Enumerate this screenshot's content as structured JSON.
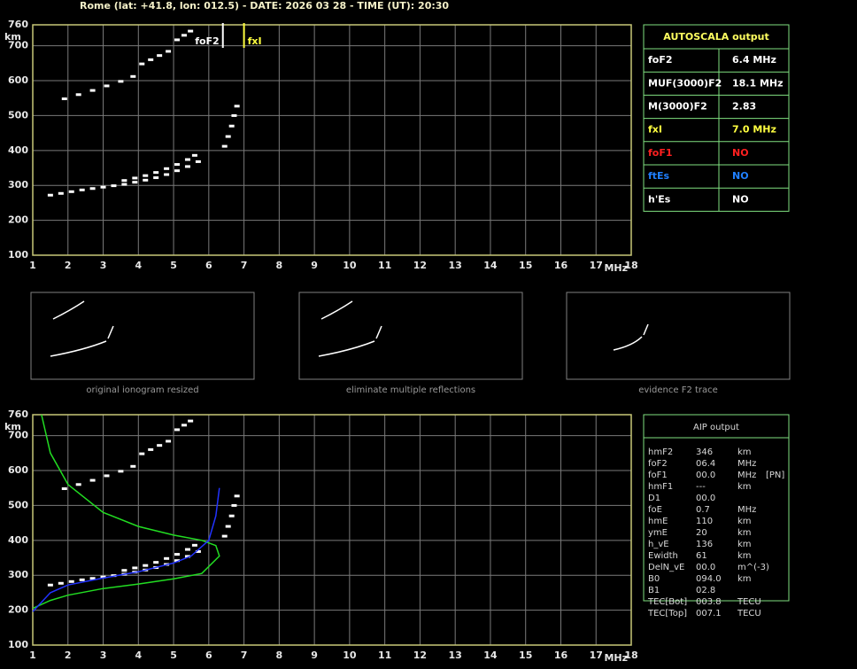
{
  "header": "Rome (lat: +41.8, lon: 012.5) - DATE: 2026 03 28 - TIME (UT): 20:30",
  "chart_data": [
    {
      "type": "scatter",
      "xlim": [
        1,
        18
      ],
      "xticks": [
        1,
        2,
        3,
        4,
        5,
        6,
        7,
        8,
        9,
        10,
        11,
        12,
        13,
        14,
        15,
        16,
        17,
        18
      ],
      "ylim": [
        100,
        760
      ],
      "yticks": [
        100,
        200,
        300,
        400,
        500,
        600,
        700,
        760
      ],
      "xlabel": "MHz",
      "ylabel": "km",
      "grid": true,
      "markers": [
        {
          "label": "foF2",
          "x": 6.4,
          "color": "#ffffff"
        },
        {
          "label": "fxI",
          "x": 7.0,
          "color": "#ffff40"
        }
      ],
      "series": [
        {
          "type": "scatter",
          "color": "#ffffff",
          "x": [
            1.5,
            1.8,
            2.1,
            2.4,
            2.7,
            3.0,
            3.3,
            3.6,
            3.9,
            4.2,
            4.5,
            4.8,
            5.1,
            5.4,
            5.7
          ],
          "values": [
            272,
            277,
            282,
            287,
            291,
            295,
            299,
            303,
            309,
            315,
            322,
            331,
            342,
            354,
            368
          ]
        },
        {
          "type": "scatter",
          "color": "#ffffff",
          "x": [
            3.6,
            3.9,
            4.2,
            4.5,
            4.8,
            5.1,
            5.4,
            5.6
          ],
          "values": [
            314,
            321,
            328,
            337,
            348,
            360,
            374,
            386
          ]
        },
        {
          "type": "scatter",
          "color": "#ffffff",
          "x": [
            6.45,
            6.55,
            6.65,
            6.72,
            6.8
          ],
          "values": [
            412,
            440,
            470,
            500,
            527
          ]
        },
        {
          "type": "scatter",
          "color": "#ffffff",
          "x": [
            1.9,
            2.3,
            2.7,
            3.1,
            3.5,
            3.85
          ],
          "values": [
            548,
            560,
            572,
            585,
            598,
            612
          ]
        },
        {
          "type": "scatter",
          "color": "#ffffff",
          "x": [
            4.1,
            4.35,
            4.6,
            4.85
          ],
          "values": [
            648,
            660,
            672,
            684
          ]
        },
        {
          "type": "scatter",
          "color": "#ffffff",
          "x": [
            5.1,
            5.3,
            5.48
          ],
          "values": [
            717,
            730,
            742
          ]
        }
      ]
    },
    {
      "type": "line",
      "xlim": [
        1,
        18
      ],
      "xticks": [
        1,
        2,
        3,
        4,
        5,
        6,
        7,
        8,
        9,
        10,
        11,
        12,
        13,
        14,
        15,
        16,
        17,
        18
      ],
      "ylim": [
        100,
        760
      ],
      "yticks": [
        100,
        200,
        300,
        400,
        500,
        600,
        700,
        760
      ],
      "xlabel": "MHz",
      "ylabel": "km",
      "grid": true,
      "series": [
        {
          "type": "scatter",
          "color": "#ffffff",
          "x": [
            1.5,
            1.8,
            2.1,
            2.4,
            2.7,
            3.0,
            3.3,
            3.6,
            3.9,
            4.2,
            4.5,
            4.8,
            5.1,
            5.4,
            5.7
          ],
          "values": [
            272,
            277,
            282,
            287,
            291,
            295,
            299,
            303,
            309,
            315,
            322,
            331,
            342,
            354,
            368
          ]
        },
        {
          "type": "scatter",
          "color": "#ffffff",
          "x": [
            3.6,
            3.9,
            4.2,
            4.5,
            4.8,
            5.1,
            5.4,
            5.6
          ],
          "values": [
            314,
            321,
            328,
            337,
            348,
            360,
            374,
            386
          ]
        },
        {
          "type": "scatter",
          "color": "#ffffff",
          "x": [
            6.45,
            6.55,
            6.65,
            6.72,
            6.8
          ],
          "values": [
            412,
            440,
            470,
            500,
            527
          ]
        },
        {
          "type": "scatter",
          "color": "#ffffff",
          "x": [
            1.9,
            2.3,
            2.7,
            3.1,
            3.5,
            3.85
          ],
          "values": [
            548,
            560,
            572,
            585,
            598,
            612
          ]
        },
        {
          "type": "scatter",
          "color": "#ffffff",
          "x": [
            4.1,
            4.35,
            4.6,
            4.85
          ],
          "values": [
            648,
            660,
            672,
            684
          ]
        },
        {
          "type": "scatter",
          "color": "#ffffff",
          "x": [
            5.1,
            5.3,
            5.48
          ],
          "values": [
            717,
            730,
            742
          ]
        },
        {
          "type": "line",
          "color": "#22dd22",
          "x": [
            1,
            1.5,
            2,
            3,
            4,
            5,
            5.8,
            6.3,
            6.2,
            5.8,
            5,
            4,
            3,
            2,
            1.5,
            1.25
          ],
          "values": [
            205,
            228,
            243,
            262,
            275,
            290,
            305,
            355,
            385,
            400,
            415,
            440,
            480,
            560,
            650,
            760
          ]
        },
        {
          "type": "line",
          "color": "#2233ff",
          "x": [
            1,
            1.5,
            2,
            3,
            4,
            5,
            5.5,
            6,
            6.2,
            6.3
          ],
          "values": [
            196,
            250,
            272,
            292,
            310,
            335,
            355,
            400,
            470,
            550
          ]
        }
      ]
    }
  ],
  "autoscala": {
    "title": "AUTOSCALA output",
    "rows": [
      {
        "label": "foF2",
        "value": "6.4 MHz",
        "color": "#ffffff"
      },
      {
        "label": "MUF(3000)F2",
        "value": "18.1 MHz",
        "color": "#ffffff"
      },
      {
        "label": "M(3000)F2",
        "value": "2.83",
        "color": "#ffffff"
      },
      {
        "label": "fxI",
        "value": "7.0 MHz",
        "color": "#ffff40"
      },
      {
        "label": "foF1",
        "value": "NO",
        "color": "#ff2020"
      },
      {
        "label": "ftEs",
        "value": "NO",
        "color": "#2080ff"
      },
      {
        "label": "h'Es",
        "value": "NO",
        "color": "#ffffff"
      }
    ]
  },
  "thumbnails": [
    "original ionogram resized",
    "eliminate multiple reflections",
    "evidence F2 trace"
  ],
  "aip": {
    "title": "AIP output",
    "rows": [
      [
        "hmF2",
        "346",
        "km"
      ],
      [
        "foF2",
        "06.4",
        "MHz"
      ],
      [
        "foF1",
        "00.0",
        "MHz",
        "[PN]"
      ],
      [
        "hmF1",
        "---",
        "km"
      ],
      [
        "D1",
        "00.0"
      ],
      [
        "foE",
        "0.7",
        "MHz"
      ],
      [
        "hmE",
        "110",
        "km"
      ],
      [
        "ymE",
        "20",
        "km"
      ],
      [
        "h_vE",
        "136",
        "km"
      ],
      [
        "Ewidth",
        "61",
        "km"
      ],
      [
        "DelN_vE",
        "00.0",
        "m^(-3)"
      ],
      [
        "B0",
        "094.0",
        "km"
      ],
      [
        "B1",
        "02.8"
      ],
      [
        "TEC[Bot]",
        "003.8",
        "TECU"
      ],
      [
        "TEC[Top]",
        "007.1",
        "TECU"
      ]
    ]
  }
}
